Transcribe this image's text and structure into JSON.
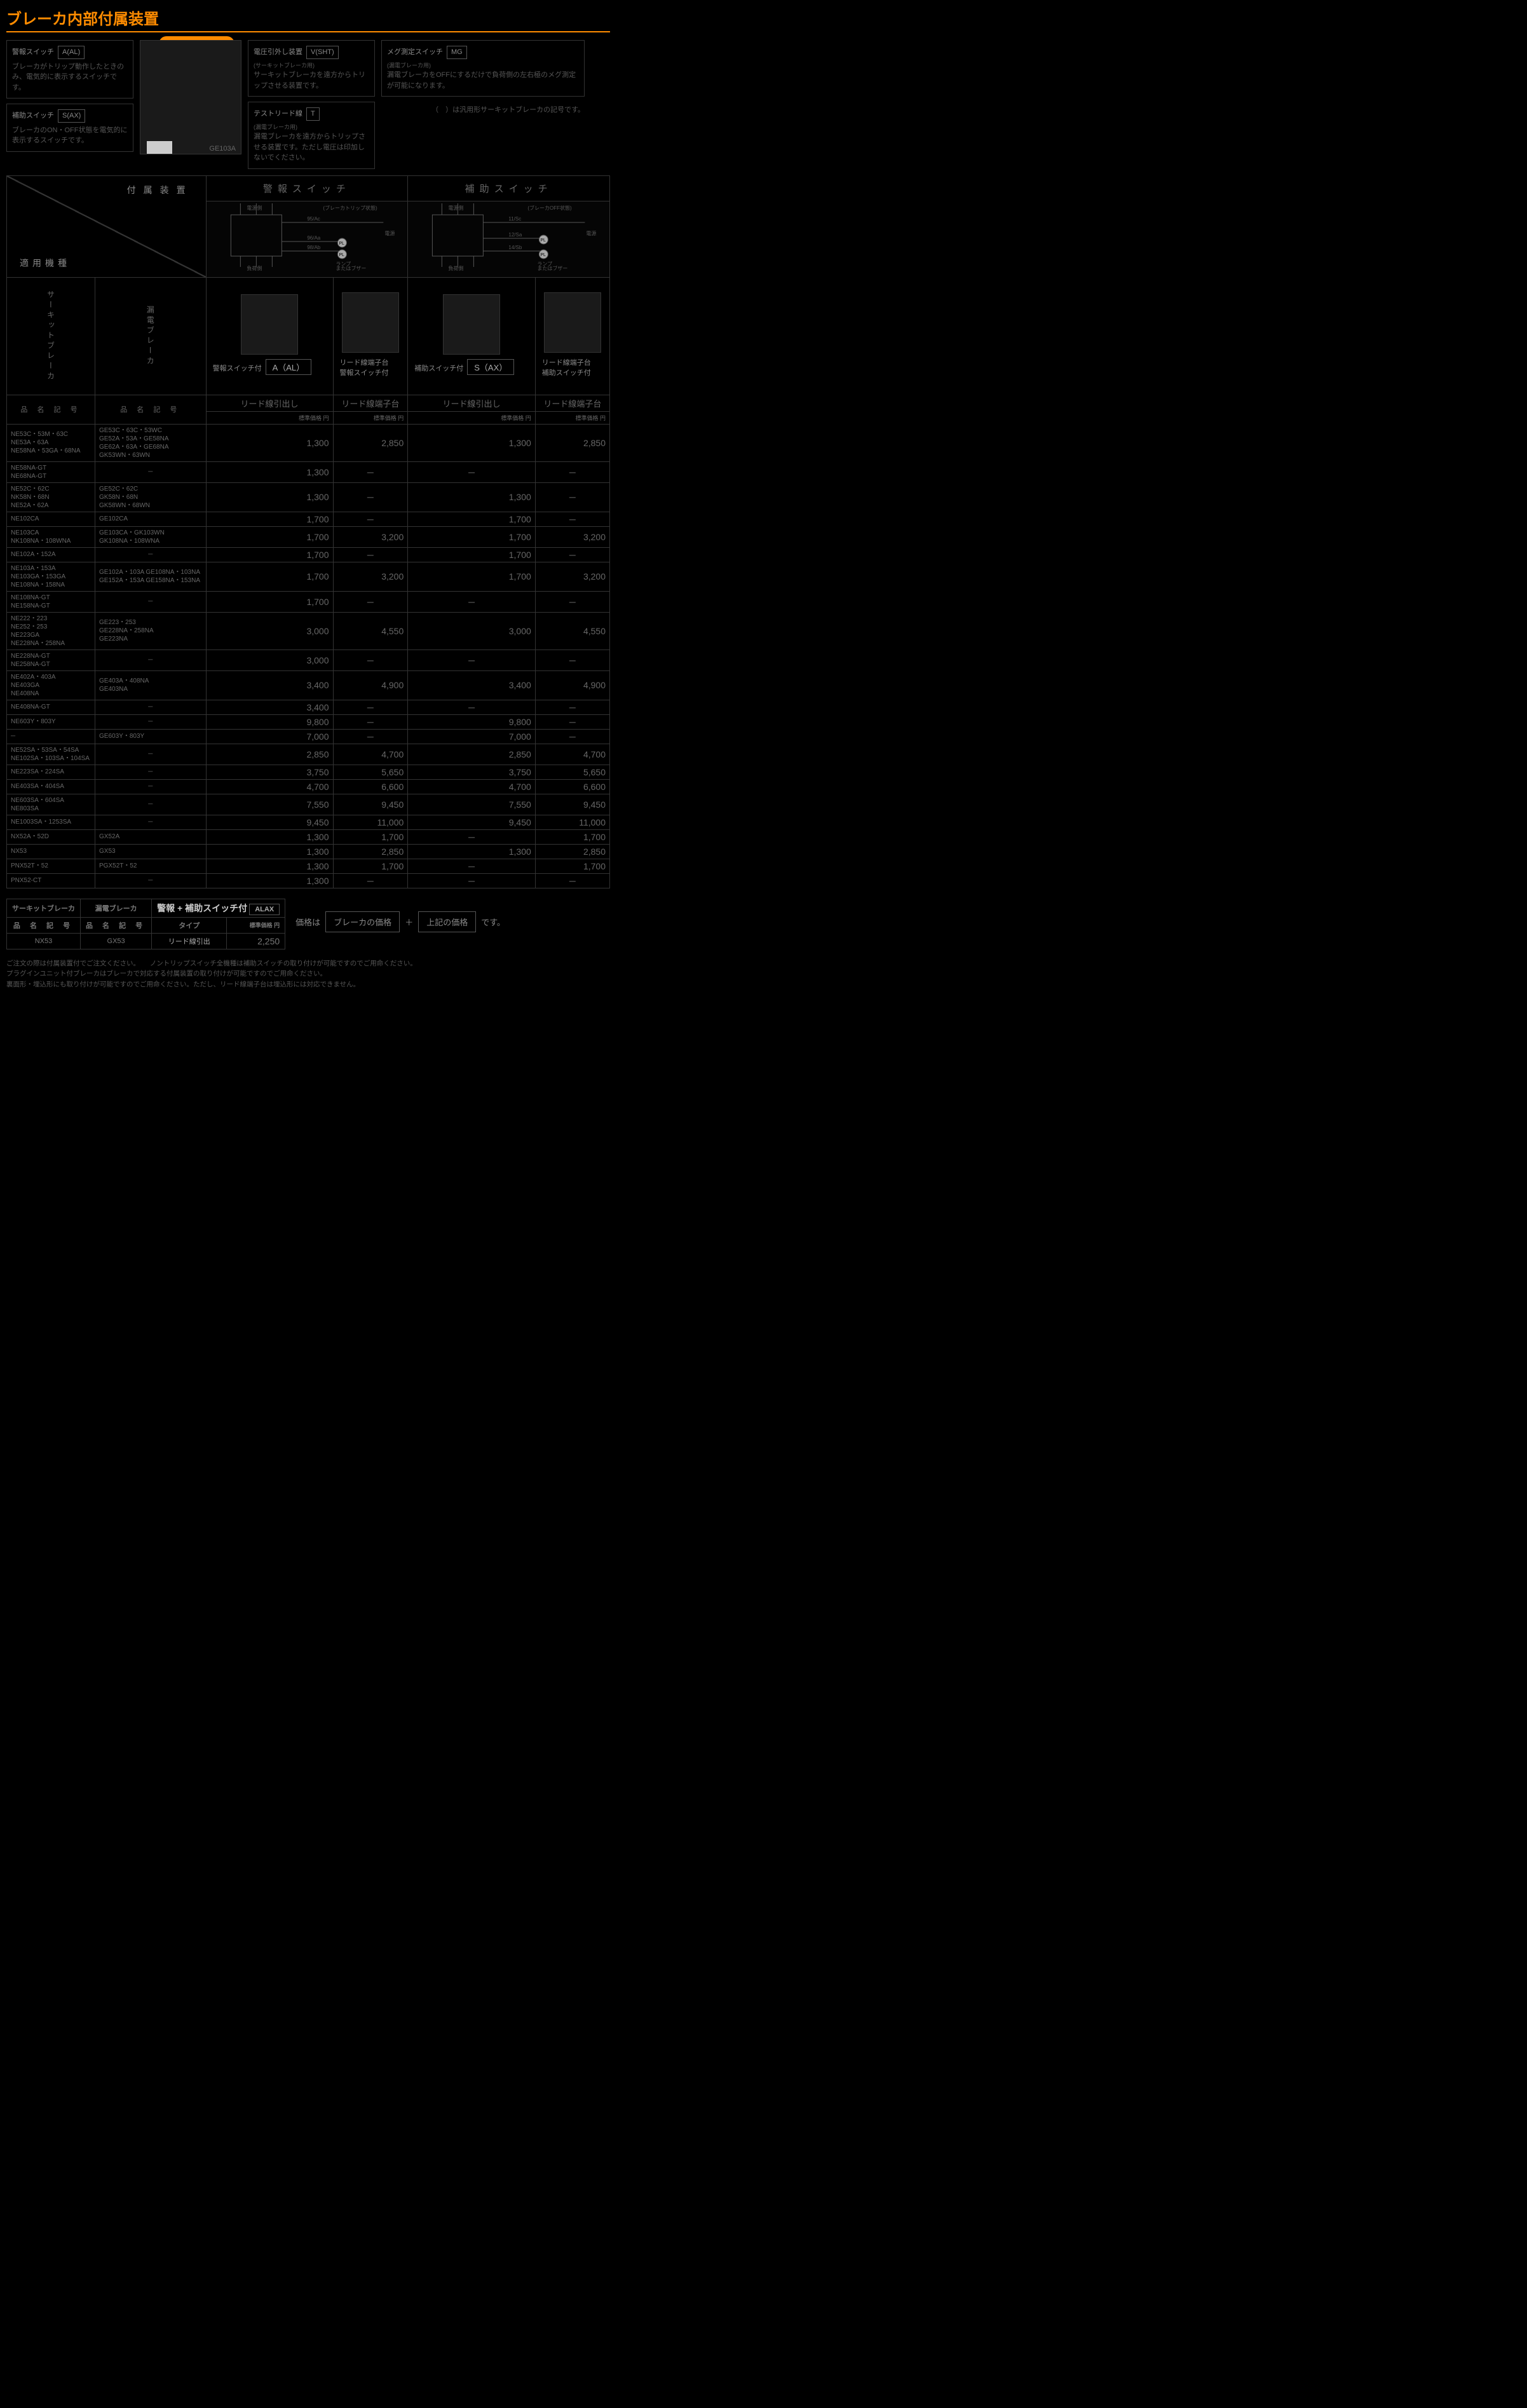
{
  "page": {
    "title": "ブレーカ内部付属装置",
    "lead_pill": "リード線引出し",
    "breaker_model_caption": "GE103A",
    "general_note": "（　）は汎用形サーキットブレーカの記号です。"
  },
  "descriptions": {
    "alarm": {
      "name": "警報スイッチ",
      "symbol": "A(AL)",
      "text": "ブレーカがトリップ動作したときのみ、電気的に表示するスイッチです。"
    },
    "aux": {
      "name": "補助スイッチ",
      "symbol": "S(AX)",
      "text": "ブレーカのON・OFF状態を電気的に表示するスイッチです。"
    },
    "shunt": {
      "name": "電圧引外し装置",
      "subtitle": "(サーキットブレーカ用)",
      "symbol": "V(SHT)",
      "text": "サーキットブレーカを遠方からトリップさせる装置です。"
    },
    "test": {
      "name": "テストリード線",
      "subtitle": "(漏電ブレーカ用)",
      "symbol": "T",
      "text": "漏電ブレーカを遠方からトリップさせる装置です。ただし電圧は印加しないでください。"
    },
    "meg": {
      "name": "メグ測定スイッチ",
      "subtitle": "(漏電ブレーカ用)",
      "symbol": "MG",
      "text": "漏電ブレーカをOFFにするだけで負荷側の左右極のメグ測定が可能になります。"
    }
  },
  "circuit": {
    "alarm": {
      "top_left": "電源側",
      "top_right": "(ブレーカトリップ状態)",
      "t1": "95/Ac",
      "t2": "96/Aa",
      "t3": "98/Ab",
      "side": "電源",
      "bottom_left": "負荷側",
      "bottom_right": "ランプ\nまたは\nブザー",
      "pl": "PL"
    },
    "aux": {
      "top_left": "電源側",
      "top_right": "(ブレーカOFF状態)",
      "t1": "11/Sc",
      "t2": "12/Sa",
      "t3": "14/Sb",
      "side": "電源",
      "bottom_left": "負荷側",
      "bottom_right": "ランプ\nまたは\nブザー",
      "pl": "PL"
    }
  },
  "table": {
    "corner_top": "付属装置",
    "corner_bot": "適用機種",
    "group_headers": [
      "警報スイッチ",
      "補助スイッチ"
    ],
    "vert_left": "サーキットブレーカ",
    "vert_right": "漏電ブレーカ",
    "thumbs": [
      {
        "label": "警報スイッチ付",
        "sym": "A（AL）"
      },
      {
        "label": "リード線端子台\n警報スイッチ付",
        "sym": ""
      },
      {
        "label": "補助スイッチ付",
        "sym": "S（AX）"
      },
      {
        "label": "リード線端子台\n補助スイッチ付",
        "sym": ""
      }
    ],
    "sub_headers": [
      "リード線引出し",
      "リード線端子台",
      "リード線引出し",
      "リード線端子台"
    ],
    "price_label": "標準価格 円",
    "code_header": "品 名 記 号",
    "rows": [
      {
        "c1": "NE53C・53M・63C\nNE53A・63A\nNE58NA・53GA・68NA",
        "c2": "GE53C・63C・53WC\nGE52A・53A・GE58NA\nGE62A・63A・GE68NA\nGK53WN・63WN",
        "v": [
          "1,300",
          "2,850",
          "1,300",
          "2,850"
        ]
      },
      {
        "c1": "NE58NA-GT\nNE68NA-GT",
        "c2": "─",
        "v": [
          "1,300",
          "─",
          "─",
          "─"
        ]
      },
      {
        "c1": "NE52C・62C\nNK58N・68N\nNE52A・62A",
        "c2": "GE52C・62C\nGK58N・68N\nGK58WN・68WN",
        "v": [
          "1,300",
          "─",
          "1,300",
          "─"
        ]
      },
      {
        "c1": "NE102CA",
        "c2": "GE102CA",
        "v": [
          "1,700",
          "─",
          "1,700",
          "─"
        ]
      },
      {
        "c1": "NE103CA\nNK108NA・108WNA",
        "c2": "GE103CA・GK103WN\nGK108NA・108WNA",
        "v": [
          "1,700",
          "3,200",
          "1,700",
          "3,200"
        ]
      },
      {
        "c1": "NE102A・152A",
        "c2": "─",
        "v": [
          "1,700",
          "─",
          "1,700",
          "─"
        ]
      },
      {
        "c1": "NE103A・153A\nNE103GA・153GA\nNE108NA・158NA",
        "c2": "GE102A・103A GE108NA・103NA\nGE152A・153A GE158NA・153NA",
        "v": [
          "1,700",
          "3,200",
          "1,700",
          "3,200"
        ]
      },
      {
        "c1": "NE108NA-GT\nNE158NA-GT",
        "c2": "─",
        "v": [
          "1,700",
          "─",
          "─",
          "─"
        ]
      },
      {
        "c1": "NE222・223\nNE252・253\nNE223GA\nNE228NA・258NA",
        "c2": "GE223・253\nGE228NA・258NA\nGE223NA",
        "v": [
          "3,000",
          "4,550",
          "3,000",
          "4,550"
        ]
      },
      {
        "c1": "NE228NA-GT\nNE258NA-GT",
        "c2": "─",
        "v": [
          "3,000",
          "─",
          "─",
          "─"
        ]
      },
      {
        "c1": "NE402A・403A\nNE403GA\nNE408NA",
        "c2": "GE403A・408NA\nGE403NA",
        "v": [
          "3,400",
          "4,900",
          "3,400",
          "4,900"
        ]
      },
      {
        "c1": "NE408NA-GT",
        "c2": "─",
        "v": [
          "3,400",
          "─",
          "─",
          "─"
        ]
      },
      {
        "c1": "NE603Y・803Y",
        "c2": "─",
        "v": [
          "9,800",
          "─",
          "9,800",
          "─"
        ]
      },
      {
        "c1": "─",
        "c2": "GE603Y・803Y",
        "v": [
          "7,000",
          "─",
          "7,000",
          "─"
        ]
      },
      {
        "c1": "NE52SA・53SA・54SA\nNE102SA・103SA・104SA",
        "c2": "─",
        "v": [
          "2,850",
          "4,700",
          "2,850",
          "4,700"
        ]
      },
      {
        "c1": "NE223SA・224SA",
        "c2": "─",
        "v": [
          "3,750",
          "5,650",
          "3,750",
          "5,650"
        ]
      },
      {
        "c1": "NE403SA・404SA",
        "c2": "─",
        "v": [
          "4,700",
          "6,600",
          "4,700",
          "6,600"
        ]
      },
      {
        "c1": "NE603SA・604SA\nNE803SA",
        "c2": "─",
        "v": [
          "7,550",
          "9,450",
          "7,550",
          "9,450"
        ]
      },
      {
        "c1": "NE1003SA・1253SA",
        "c2": "─",
        "v": [
          "9,450",
          "11,000",
          "9,450",
          "11,000"
        ]
      },
      {
        "c1": "NX52A・52D",
        "c2": "GX52A",
        "v": [
          "1,300",
          "1,700",
          "─",
          "1,700"
        ]
      },
      {
        "c1": "NX53",
        "c2": "GX53",
        "v": [
          "1,300",
          "2,850",
          "1,300",
          "2,850"
        ]
      },
      {
        "c1": "PNX52T・52",
        "c2": "PGX52T・52",
        "v": [
          "1,300",
          "1,700",
          "─",
          "1,700"
        ]
      },
      {
        "c1": "PNX52-CT",
        "c2": "─",
        "v": [
          "1,300",
          "─",
          "─",
          "─"
        ]
      }
    ]
  },
  "combo": {
    "left_h": "サーキットブレーカ",
    "right_h": "漏電ブレーカ",
    "title": "警報 + 補助スイッチ付",
    "symbol": "ALAX",
    "code_h": "品 名 記 号",
    "type_h": "タイプ",
    "price_h": "標準価格 円",
    "row": {
      "c1": "NX53",
      "c2": "GX53",
      "type": "リード線引出",
      "price": "2,250"
    }
  },
  "price_eq": {
    "prefix": "価格は",
    "box1": "ブレーカの価格",
    "plus": "＋",
    "box2": "上記の価格",
    "suffix": "です。"
  },
  "footnotes": [
    "ご注文の際は付属装置付でご注文ください。　　ノントリップスイッチ全機種は補助スイッチの取り付けが可能ですのでご用命ください。",
    "プラグインユニット付ブレーカはブレーカで対応する付属装置の取り付けが可能ですのでご用命ください。",
    "裏面形・埋込形にも取り付けが可能ですのでご用命ください。ただし、リード線端子台は埋込形には対応できません。"
  ],
  "style": {
    "accent": "#ff8c00",
    "bg": "#000000",
    "border": "#333333",
    "text_dim": "#555555",
    "text_mid": "#888888",
    "text_num": "#aaaaaa"
  }
}
